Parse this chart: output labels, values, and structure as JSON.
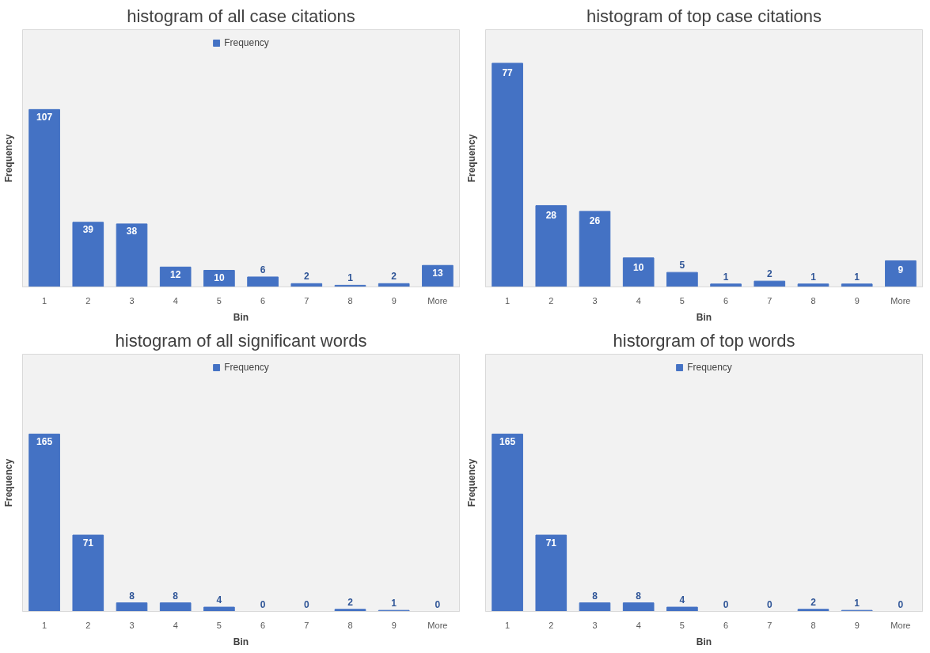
{
  "chart_data": [
    {
      "type": "bar",
      "title": "histogram of all case citations",
      "xlabel": "Bin",
      "ylabel": "Frequency",
      "categories": [
        "1",
        "2",
        "3",
        "4",
        "5",
        "6",
        "7",
        "8",
        "9",
        "More"
      ],
      "series": [
        {
          "name": "Frequency",
          "color": "#4472c4",
          "values": [
            107,
            39,
            38,
            12,
            10,
            6,
            2,
            1,
            2,
            13
          ]
        }
      ],
      "data_labels": true,
      "legend": "top",
      "grid": false
    },
    {
      "type": "bar",
      "title": "histogram of top case citations",
      "xlabel": "Bin",
      "ylabel": "Frequency",
      "categories": [
        "1",
        "2",
        "3",
        "4",
        "5",
        "6",
        "7",
        "8",
        "9",
        "More"
      ],
      "series": [
        {
          "color": "#4472c4",
          "values": [
            77,
            28,
            26,
            10,
            5,
            1,
            2,
            1,
            1,
            9
          ]
        }
      ],
      "data_labels": true,
      "grid": false
    },
    {
      "type": "bar",
      "title": "histogram of all significant words",
      "xlabel": "Bin",
      "ylabel": "Frequency",
      "categories": [
        "1",
        "2",
        "3",
        "4",
        "5",
        "6",
        "7",
        "8",
        "9",
        "More"
      ],
      "series": [
        {
          "name": "Frequency",
          "color": "#4472c4",
          "values": [
            165,
            71,
            8,
            8,
            4,
            0,
            0,
            2,
            1,
            0
          ]
        }
      ],
      "data_labels": true,
      "legend": "top",
      "grid": false
    },
    {
      "type": "bar",
      "title": "historgram of top words",
      "xlabel": "Bin",
      "ylabel": "Frequency",
      "categories": [
        "1",
        "2",
        "3",
        "4",
        "5",
        "6",
        "7",
        "8",
        "9",
        "More"
      ],
      "series": [
        {
          "name": "Frequency",
          "color": "#4472c4",
          "values": [
            165,
            71,
            8,
            8,
            4,
            0,
            0,
            2,
            1,
            0
          ]
        }
      ],
      "data_labels": true,
      "legend": "top",
      "grid": false
    }
  ]
}
